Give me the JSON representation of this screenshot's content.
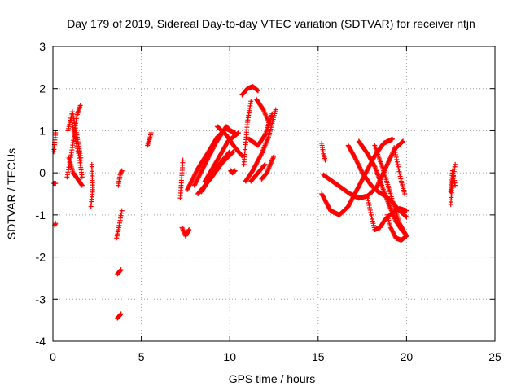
{
  "chart_data": {
    "type": "scatter",
    "title": "Day 179 of 2019, Sidereal Day-to-day VTEC variation (SDTVAR) for receiver ntjn",
    "xlabel": "GPS time / hours",
    "ylabel": "SDTVAR / TECUs",
    "xlim": [
      0,
      25
    ],
    "ylim": [
      -4,
      3
    ],
    "x_ticks": [
      0,
      5,
      10,
      15,
      20,
      25
    ],
    "y_ticks": [
      -4,
      -3,
      -2,
      -1,
      0,
      1,
      2,
      3
    ],
    "grid": true,
    "marker": "+",
    "marker_color": "#ff0000",
    "segments": [
      {
        "x": [
          0.05,
          0.15
        ],
        "y": [
          -0.25,
          -0.25
        ]
      },
      {
        "x": [
          0.1,
          0.15
        ],
        "y": [
          -1.25,
          -1.2
        ]
      },
      {
        "x": [
          0.05,
          0.15
        ],
        "y": [
          0.5,
          0.95
        ]
      },
      {
        "x": [
          0.8,
          1.1,
          1.35,
          1.55
        ],
        "y": [
          -0.1,
          0.6,
          1.35,
          1.6
        ]
      },
      {
        "x": [
          0.85,
          1.1,
          1.35,
          1.6
        ],
        "y": [
          1.0,
          1.45,
          0.9,
          0.3
        ]
      },
      {
        "x": [
          0.9,
          1.15,
          1.4,
          1.65
        ],
        "y": [
          0.35,
          0.0,
          -0.15,
          -0.3
        ]
      },
      {
        "x": [
          1.05,
          1.3,
          1.5,
          1.65
        ],
        "y": [
          1.25,
          0.75,
          0.35,
          -0.1
        ]
      },
      {
        "x": [
          2.15,
          2.25,
          2.2
        ],
        "y": [
          -0.8,
          -0.4,
          0.2
        ]
      },
      {
        "x": [
          3.6,
          3.75,
          3.9
        ],
        "y": [
          -1.55,
          -1.25,
          -0.9
        ]
      },
      {
        "x": [
          3.7,
          3.8,
          3.9
        ],
        "y": [
          -0.3,
          -0.05,
          0.05
        ]
      },
      {
        "x": [
          3.65,
          3.75,
          3.85
        ],
        "y": [
          -2.4,
          -2.35,
          -2.3
        ]
      },
      {
        "x": [
          3.65,
          3.75,
          3.85
        ],
        "y": [
          -3.45,
          -3.4,
          -3.35
        ]
      },
      {
        "x": [
          5.35,
          5.5,
          5.55
        ],
        "y": [
          0.65,
          0.85,
          0.95
        ]
      },
      {
        "x": [
          7.2,
          7.3,
          7.35
        ],
        "y": [
          -0.6,
          0.0,
          0.3
        ]
      },
      {
        "x": [
          7.3,
          7.5,
          7.7
        ],
        "y": [
          -1.3,
          -1.5,
          -1.35
        ]
      },
      {
        "x": [
          7.6,
          8.2,
          8.8,
          9.3,
          9.8,
          10.3
        ],
        "y": [
          -0.4,
          0.1,
          0.5,
          0.85,
          1.05,
          0.95
        ]
      },
      {
        "x": [
          8.0,
          8.6,
          9.2,
          9.8,
          10.3
        ],
        "y": [
          -0.3,
          0.2,
          0.7,
          1.1,
          0.9
        ]
      },
      {
        "x": [
          8.2,
          8.9,
          9.6,
          10.2
        ],
        "y": [
          -0.5,
          -0.15,
          0.25,
          0.5
        ]
      },
      {
        "x": [
          8.4,
          9.0,
          9.6,
          10.0
        ],
        "y": [
          -0.45,
          -0.05,
          0.3,
          0.5
        ]
      },
      {
        "x": [
          8.6,
          9.3,
          9.9,
          10.5
        ],
        "y": [
          -0.2,
          0.3,
          0.75,
          0.95
        ]
      },
      {
        "x": [
          9.3,
          9.8,
          10.3,
          10.7
        ],
        "y": [
          1.1,
          0.9,
          0.6,
          0.4
        ]
      },
      {
        "x": [
          10.05,
          10.15,
          10.3
        ],
        "y": [
          0.05,
          0.0,
          0.05
        ]
      },
      {
        "x": [
          10.7,
          11.0,
          11.3,
          11.6
        ],
        "y": [
          1.85,
          2.0,
          2.05,
          1.95
        ]
      },
      {
        "x": [
          10.8,
          11.0,
          11.2
        ],
        "y": [
          0.2,
          1.2,
          1.7
        ]
      },
      {
        "x": [
          10.9,
          11.3,
          11.8,
          12.2,
          12.6
        ],
        "y": [
          -0.2,
          0.05,
          0.45,
          0.85,
          1.5
        ]
      },
      {
        "x": [
          11.1,
          11.6,
          12.0,
          12.4
        ],
        "y": [
          0.8,
          0.65,
          0.9,
          1.4
        ]
      },
      {
        "x": [
          11.2,
          11.6,
          12.0
        ],
        "y": [
          -0.2,
          0.0,
          0.2
        ]
      },
      {
        "x": [
          11.5,
          11.9,
          12.2
        ],
        "y": [
          1.75,
          1.5,
          1.2
        ]
      },
      {
        "x": [
          11.8,
          12.1,
          12.3,
          12.5
        ],
        "y": [
          -0.15,
          0.0,
          0.2,
          0.4
        ]
      },
      {
        "x": [
          15.2,
          15.3,
          15.4
        ],
        "y": [
          0.7,
          0.45,
          0.3
        ]
      },
      {
        "x": [
          15.3,
          15.8,
          16.3,
          16.8,
          17.3,
          17.8,
          18.3,
          18.8,
          19.3,
          19.8
        ],
        "y": [
          -0.05,
          -0.2,
          -0.35,
          -0.5,
          -0.6,
          -0.55,
          -0.35,
          0.1,
          0.55,
          0.75
        ]
      },
      {
        "x": [
          15.2,
          15.7,
          16.2,
          16.7,
          17.2,
          17.7,
          18.2,
          18.7,
          19.2
        ],
        "y": [
          -0.5,
          -0.9,
          -1.0,
          -0.8,
          -0.4,
          0.0,
          0.4,
          0.7,
          0.8
        ]
      },
      {
        "x": [
          16.7,
          17.1,
          17.5,
          18.0,
          18.4,
          18.8,
          19.2,
          19.6,
          20.0
        ],
        "y": [
          0.65,
          0.35,
          0.0,
          -0.3,
          -0.45,
          -0.55,
          -0.7,
          -0.9,
          -1.05
        ]
      },
      {
        "x": [
          17.3,
          17.8,
          18.2,
          18.6,
          19.0,
          19.4,
          19.8
        ],
        "y": [
          0.75,
          0.45,
          0.15,
          -0.3,
          -0.75,
          -1.15,
          -1.4
        ]
      },
      {
        "x": [
          17.8,
          18.0,
          18.2,
          18.5,
          18.8,
          19.2,
          19.6,
          20.0
        ],
        "y": [
          -0.6,
          -1.0,
          -1.35,
          -1.3,
          -1.1,
          -0.95,
          -0.85,
          -0.9
        ]
      },
      {
        "x": [
          18.2,
          18.7,
          19.2,
          19.6,
          20.0
        ],
        "y": [
          0.65,
          0.05,
          -0.65,
          -1.2,
          -1.5
        ]
      },
      {
        "x": [
          18.9,
          19.1,
          19.4,
          19.7,
          20.0
        ],
        "y": [
          -1.0,
          -1.3,
          -1.55,
          -1.6,
          -1.5
        ]
      },
      {
        "x": [
          19.3,
          19.5,
          19.7,
          19.9
        ],
        "y": [
          0.6,
          0.2,
          -0.2,
          -0.5
        ]
      },
      {
        "x": [
          22.5,
          22.6,
          22.75
        ],
        "y": [
          -0.75,
          -0.2,
          0.2
        ]
      },
      {
        "x": [
          22.5,
          22.6,
          22.75
        ],
        "y": [
          -0.45,
          0.05,
          -0.3
        ]
      }
    ]
  }
}
